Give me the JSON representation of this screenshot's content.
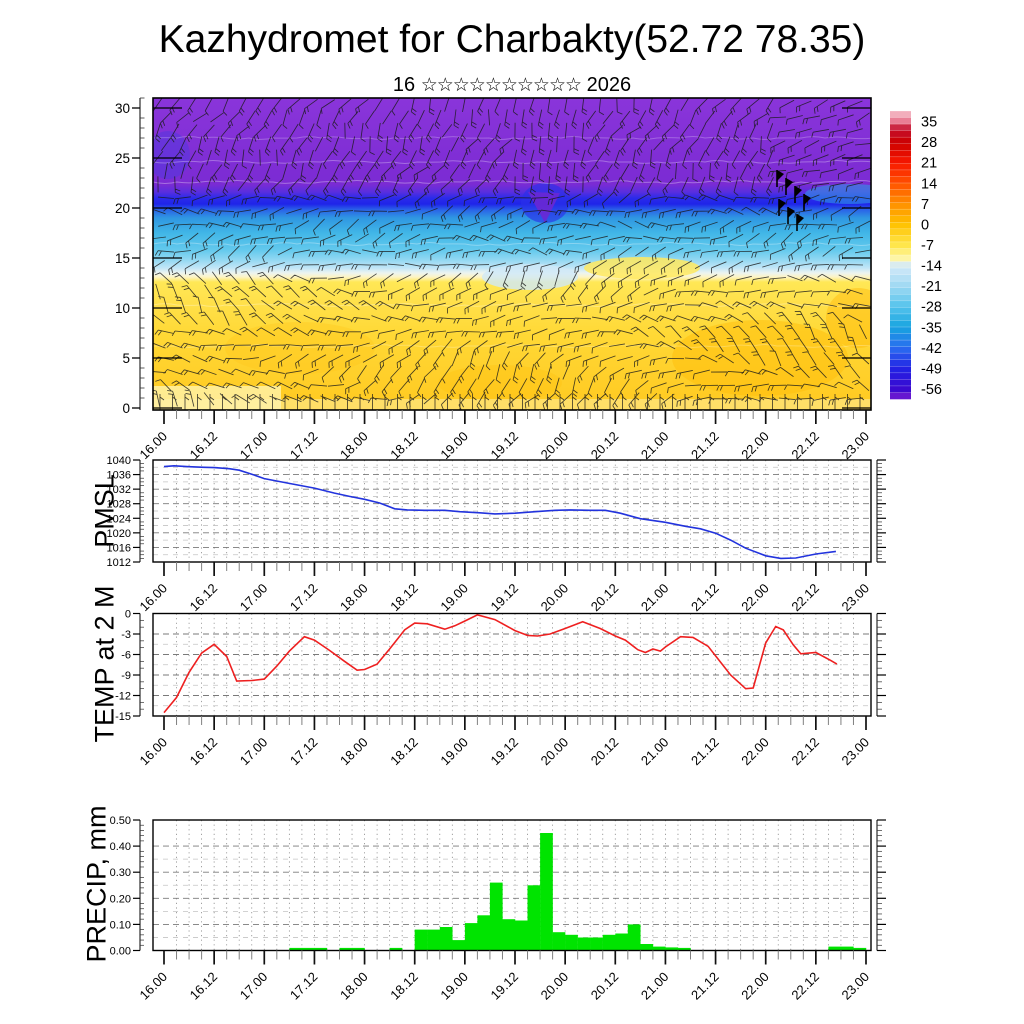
{
  "title": "Kazhydromet for Charbakty(52.72 78.35)",
  "subtitle": {
    "day": "16",
    "stars": "☆☆☆☆☆☆☆☆☆☆",
    "year": "2026"
  },
  "x_axis": {
    "labels": [
      "16.00",
      "16.12",
      "17.00",
      "17.12",
      "18.00",
      "18.12",
      "19.00",
      "19.12",
      "20.00",
      "20.12",
      "21.00",
      "21.12",
      "22.00",
      "22.12",
      "23.00"
    ],
    "minor_ticks_per_major": 4
  },
  "colors": {
    "pmsl_line": "#2233dd",
    "temp_line": "#ee2020",
    "precip_bar": "#00e400",
    "grid_major": "#7a7a7a",
    "grid_mid": "#c4c4c4",
    "grid_dot": "#8a8a8a",
    "barb": "#1b1b1b"
  },
  "chart_data": [
    {
      "id": "wind-cross-section",
      "type": "heatmap",
      "description": "Vertical cross-section: temperature shading with dense wind barbs",
      "ylabel": "",
      "y_ticks": [
        0,
        5,
        10,
        15,
        20,
        25,
        30
      ],
      "y_range": [
        0,
        31
      ],
      "shading_stops": [
        [
          31,
          "#8a35da"
        ],
        [
          22.4,
          "#7b2bd3"
        ],
        [
          21.6,
          "#5a2ede"
        ],
        [
          21.0,
          "#2b2bea"
        ],
        [
          20.4,
          "#1f24e9"
        ],
        [
          19.8,
          "#2a65e8"
        ],
        [
          19.0,
          "#2f97e2"
        ],
        [
          17.5,
          "#41b6e7"
        ],
        [
          15.8,
          "#63c9ed"
        ],
        [
          14.8,
          "#93d8f2"
        ],
        [
          14.0,
          "#c2e6f7"
        ],
        [
          13.5,
          "#ecf4f0"
        ],
        [
          13.1,
          "#fdf4c4"
        ],
        [
          12.6,
          "#ffe856"
        ],
        [
          10.5,
          "#ffe04a"
        ],
        [
          7.5,
          "#ffd936"
        ],
        [
          3.5,
          "#ffd02b"
        ],
        [
          0,
          "#ffca20"
        ]
      ],
      "wind_flags": [
        [
          777,
          170
        ],
        [
          786,
          178
        ],
        [
          795,
          186
        ],
        [
          804,
          194
        ],
        [
          779,
          199
        ],
        [
          788,
          207
        ],
        [
          797,
          214
        ]
      ],
      "colorbar": {
        "ticks": [
          35,
          28,
          21,
          14,
          7,
          0,
          -7,
          -14,
          -21,
          -28,
          -35,
          -42,
          -49,
          -56
        ],
        "stops": [
          [
            38.6,
            "#f6c6d0"
          ],
          [
            35,
            "#e87890"
          ],
          [
            32.5,
            "#c41230"
          ],
          [
            28,
            "#cc0000"
          ],
          [
            21,
            "#f81800"
          ],
          [
            14,
            "#ff5200"
          ],
          [
            7,
            "#ff9000"
          ],
          [
            0,
            "#ffc200"
          ],
          [
            -7,
            "#ffe64a"
          ],
          [
            -12,
            "#fdf7b0"
          ],
          [
            -14,
            "#d5eaf8"
          ],
          [
            -21,
            "#9fd9f3"
          ],
          [
            -28,
            "#55c3ec"
          ],
          [
            -35,
            "#17a4e0"
          ],
          [
            -42,
            "#2a6cf0"
          ],
          [
            -49,
            "#2222e4"
          ],
          [
            -56,
            "#3a0ad0"
          ],
          [
            -59.4,
            "#7a1fd0"
          ]
        ]
      }
    },
    {
      "id": "pmsl",
      "type": "line",
      "ylabel": "PMSL",
      "y_ticks": [
        1040,
        1036,
        1032,
        1028,
        1024,
        1020,
        1016,
        1012
      ],
      "y_range": [
        1012,
        1040
      ],
      "points": [
        [
          0,
          1038.2
        ],
        [
          0.2,
          1038.4
        ],
        [
          0.5,
          1038.15
        ],
        [
          0.8,
          1038.0
        ],
        [
          1.0,
          1037.9
        ],
        [
          1.3,
          1037.6
        ],
        [
          1.5,
          1037.2
        ],
        [
          1.75,
          1036.1
        ],
        [
          2.0,
          1034.9
        ],
        [
          2.3,
          1034.1
        ],
        [
          2.6,
          1033.3
        ],
        [
          3.0,
          1032.3
        ],
        [
          3.4,
          1030.9
        ],
        [
          3.7,
          1030.0
        ],
        [
          4.0,
          1029.2
        ],
        [
          4.3,
          1028.2
        ],
        [
          4.6,
          1026.6
        ],
        [
          4.85,
          1026.3
        ],
        [
          5.2,
          1026.2
        ],
        [
          5.6,
          1026.2
        ],
        [
          5.9,
          1025.8
        ],
        [
          6.3,
          1025.5
        ],
        [
          6.6,
          1025.2
        ],
        [
          7.0,
          1025.4
        ],
        [
          7.4,
          1025.8
        ],
        [
          7.8,
          1026.2
        ],
        [
          8.1,
          1026.3
        ],
        [
          8.5,
          1026.2
        ],
        [
          8.8,
          1026.2
        ],
        [
          9.1,
          1025.4
        ],
        [
          9.5,
          1023.9
        ],
        [
          10.0,
          1022.9
        ],
        [
          10.4,
          1021.8
        ],
        [
          10.7,
          1021.1
        ],
        [
          11.0,
          1019.9
        ],
        [
          11.3,
          1018.0
        ],
        [
          11.6,
          1015.8
        ],
        [
          12.0,
          1013.7
        ],
        [
          12.3,
          1013.0
        ],
        [
          12.6,
          1013.1
        ],
        [
          13.0,
          1014.2
        ],
        [
          13.4,
          1014.9
        ]
      ]
    },
    {
      "id": "temp2m",
      "type": "line",
      "ylabel": "TEMP at 2 M",
      "y_ticks": [
        0,
        -3,
        -6,
        -9,
        -12,
        -15
      ],
      "y_range": [
        -15,
        0
      ],
      "points": [
        [
          0,
          -14.5
        ],
        [
          0.25,
          -12.3
        ],
        [
          0.5,
          -8.6
        ],
        [
          0.75,
          -5.8
        ],
        [
          1,
          -4.5
        ],
        [
          1.25,
          -6.3
        ],
        [
          1.45,
          -9.9
        ],
        [
          1.75,
          -9.8
        ],
        [
          2,
          -9.6
        ],
        [
          2.25,
          -7.7
        ],
        [
          2.5,
          -5.5
        ],
        [
          2.8,
          -3.4
        ],
        [
          3,
          -3.9
        ],
        [
          3.3,
          -5.4
        ],
        [
          3.6,
          -7.0
        ],
        [
          3.85,
          -8.3
        ],
        [
          4,
          -8.2
        ],
        [
          4.25,
          -7.4
        ],
        [
          4.5,
          -5.2
        ],
        [
          4.8,
          -2.4
        ],
        [
          5,
          -1.4
        ],
        [
          5.25,
          -1.5
        ],
        [
          5.6,
          -2.3
        ],
        [
          5.8,
          -1.8
        ],
        [
          6,
          -1.1
        ],
        [
          6.25,
          -0.2
        ],
        [
          6.6,
          -0.9
        ],
        [
          7,
          -2.5
        ],
        [
          7.25,
          -3.2
        ],
        [
          7.45,
          -3.3
        ],
        [
          7.7,
          -3.0
        ],
        [
          8,
          -2.2
        ],
        [
          8.35,
          -1.2
        ],
        [
          8.7,
          -2.2
        ],
        [
          9,
          -3.3
        ],
        [
          9.2,
          -3.9
        ],
        [
          9.45,
          -5.3
        ],
        [
          9.6,
          -5.7
        ],
        [
          9.75,
          -5.2
        ],
        [
          9.9,
          -5.5
        ],
        [
          10,
          -4.9
        ],
        [
          10.3,
          -3.4
        ],
        [
          10.55,
          -3.5
        ],
        [
          10.85,
          -4.8
        ],
        [
          11,
          -6.2
        ],
        [
          11.3,
          -9.0
        ],
        [
          11.6,
          -11.0
        ],
        [
          11.75,
          -10.9
        ],
        [
          12,
          -4.3
        ],
        [
          12.2,
          -1.9
        ],
        [
          12.35,
          -2.4
        ],
        [
          12.55,
          -4.6
        ],
        [
          12.7,
          -5.9
        ],
        [
          13,
          -5.7
        ],
        [
          13.3,
          -6.9
        ],
        [
          13.42,
          -7.4
        ]
      ]
    },
    {
      "id": "precip",
      "type": "bar",
      "ylabel": "PRECIP, mm",
      "y_tick_labels": [
        "0.50",
        "0.40",
        "0.30",
        "0.20",
        "0.10",
        "0.00"
      ],
      "y_ticks": [
        0.5,
        0.4,
        0.3,
        0.2,
        0.1,
        0.0
      ],
      "y_range": [
        0,
        0.5
      ],
      "bar_interval_hours": 3,
      "values": [
        0,
        0,
        0,
        0,
        0,
        0,
        0,
        0,
        0,
        0,
        0.01,
        0.01,
        0.01,
        0,
        0.01,
        0.01,
        0,
        0,
        0.01,
        0,
        0.08,
        0.08,
        0.09,
        0.04,
        0.105,
        0.135,
        0.26,
        0.12,
        0.115,
        0.25,
        0.45,
        0.07,
        0.06,
        0.05,
        0.05,
        0.06,
        0.065,
        0.1,
        0.025,
        0.015,
        0.012,
        0.01,
        0,
        0,
        0,
        0,
        0,
        0,
        0,
        0,
        0,
        0,
        0,
        0.015,
        0.015,
        0.01
      ]
    }
  ]
}
